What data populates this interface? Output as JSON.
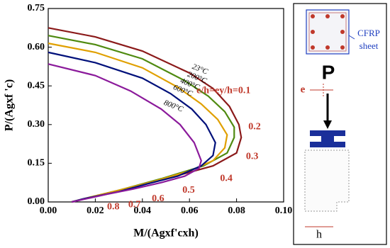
{
  "chart_data": {
    "type": "line",
    "x_label": "M/(Agxf'cxh)",
    "y_label": "P/(Agxf 'c)",
    "xlim": [
      0,
      0.1
    ],
    "ylim": [
      0,
      0.75
    ],
    "xticks": [
      {
        "value": 0,
        "label": "0.00"
      },
      {
        "value": 0.02,
        "label": "0.02"
      },
      {
        "value": 0.04,
        "label": "0.04"
      },
      {
        "value": 0.06,
        "label": "0.06"
      },
      {
        "value": 0.08,
        "label": "0.08"
      },
      {
        "value": 0.1,
        "label": "0.10"
      }
    ],
    "yticks": [
      {
        "value": 0,
        "label": "0.00"
      },
      0.15,
      {
        "value": 0.3,
        "label": "0.30"
      },
      0.45,
      {
        "value": 0.6,
        "label": "0.60"
      },
      0.75
    ],
    "series": [
      {
        "name": "23°C",
        "color": "#8b1a1a",
        "x": [
          0,
          0.02,
          0.04,
          0.06,
          0.07,
          0.077,
          0.081,
          0.082,
          0.08,
          0.07,
          0.05,
          0.03,
          0.015,
          0.01
        ],
        "values": [
          0.675,
          0.64,
          0.585,
          0.5,
          0.44,
          0.37,
          0.3,
          0.25,
          0.19,
          0.14,
          0.09,
          0.045,
          0.012,
          0
        ]
      },
      {
        "name": "200°C",
        "color": "#4f8a10",
        "x": [
          0,
          0.02,
          0.04,
          0.058,
          0.068,
          0.075,
          0.079,
          0.079,
          0.076,
          0.066,
          0.048,
          0.03,
          0.015,
          0.01
        ],
        "values": [
          0.645,
          0.61,
          0.555,
          0.47,
          0.41,
          0.35,
          0.29,
          0.25,
          0.19,
          0.14,
          0.09,
          0.045,
          0.012,
          0
        ]
      },
      {
        "name": "400°C",
        "color": "#e0a000",
        "x": [
          0,
          0.02,
          0.04,
          0.055,
          0.065,
          0.072,
          0.076,
          0.075,
          0.07,
          0.06,
          0.045,
          0.03,
          0.015,
          0.01
        ],
        "values": [
          0.615,
          0.58,
          0.52,
          0.445,
          0.38,
          0.32,
          0.26,
          0.21,
          0.16,
          0.12,
          0.08,
          0.045,
          0.012,
          0
        ]
      },
      {
        "name": "600°C",
        "color": "#00107a",
        "x": [
          0,
          0.02,
          0.04,
          0.052,
          0.061,
          0.067,
          0.071,
          0.07,
          0.065,
          0.055,
          0.042,
          0.03,
          0.015,
          0.01
        ],
        "values": [
          0.58,
          0.54,
          0.48,
          0.42,
          0.36,
          0.3,
          0.23,
          0.18,
          0.14,
          0.1,
          0.07,
          0.04,
          0.012,
          0
        ]
      },
      {
        "name": "800°C",
        "color": "#8b1a9b",
        "x": [
          0,
          0.02,
          0.035,
          0.048,
          0.056,
          0.062,
          0.065,
          0.064,
          0.058,
          0.048,
          0.036,
          0.025,
          0.015,
          0.01
        ],
        "values": [
          0.535,
          0.49,
          0.43,
          0.36,
          0.3,
          0.23,
          0.16,
          0.13,
          0.1,
          0.075,
          0.05,
          0.03,
          0.01,
          0
        ]
      }
    ],
    "annotations": [
      {
        "text": "e/h=ey/h=0.1",
        "x": 0.063,
        "y": 0.43
      },
      {
        "text": "0.2",
        "x": 0.085,
        "y": 0.29
      },
      {
        "text": "0.3",
        "x": 0.084,
        "y": 0.175
      },
      {
        "text": "0.4",
        "x": 0.073,
        "y": 0.09
      },
      {
        "text": "0.5",
        "x": 0.057,
        "y": 0.045
      },
      {
        "text": "0.6",
        "x": 0.044,
        "y": 0.012
      },
      {
        "text": "0.7",
        "x": 0.034,
        "y": -0.012
      },
      {
        "text": "0.8",
        "x": 0.025,
        "y": -0.02
      }
    ],
    "annotation_color": "#c0392b"
  },
  "diagram": {
    "labels": [
      "CFRP",
      "sheet",
      "P",
      "e",
      "h"
    ]
  }
}
